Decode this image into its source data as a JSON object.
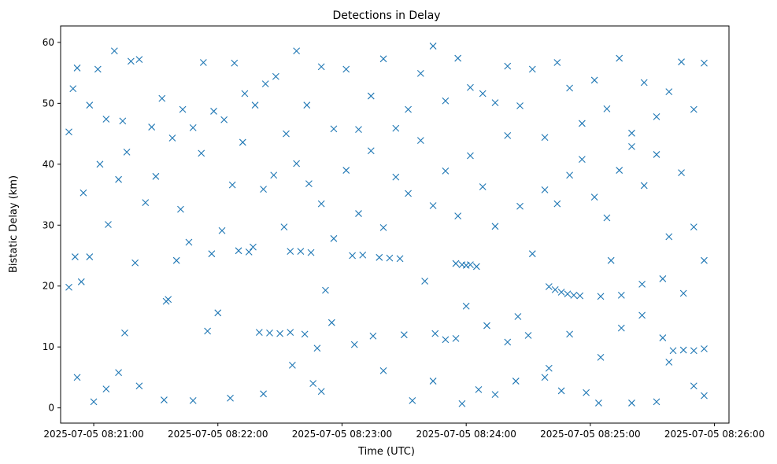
{
  "chart_data": {
    "type": "scatter",
    "title": "Detections in Delay",
    "xlabel": "Time (UTC)",
    "ylabel": "Bistatic Delay (km)",
    "x_axis_type": "datetime",
    "xlim": [
      "2025-07-05 08:20:44",
      "2025-07-05 08:26:07"
    ],
    "ylim": [
      -2.5,
      62.7
    ],
    "x_ticks": [
      "2025-07-05 08:21:00",
      "2025-07-05 08:22:00",
      "2025-07-05 08:23:00",
      "2025-07-05 08:24:00",
      "2025-07-05 08:25:00",
      "2025-07-05 08:26:00"
    ],
    "y_ticks": [
      0,
      10,
      20,
      30,
      40,
      50,
      60
    ],
    "marker": "x",
    "grid": false,
    "legend": "none",
    "series": [
      {
        "color": "#1f77b4",
        "points": [
          [
            "2025-07-05 08:20:48",
            45.3
          ],
          [
            "2025-07-05 08:20:50",
            52.4
          ],
          [
            "2025-07-05 08:20:52",
            55.8
          ],
          [
            "2025-07-05 08:20:55",
            35.3
          ],
          [
            "2025-07-05 08:20:58",
            49.7
          ],
          [
            "2025-07-05 08:21:02",
            55.6
          ],
          [
            "2025-07-05 08:21:06",
            47.4
          ],
          [
            "2025-07-05 08:21:10",
            58.6
          ],
          [
            "2025-07-05 08:21:14",
            47.1
          ],
          [
            "2025-07-05 08:21:18",
            56.9
          ],
          [
            "2025-07-05 08:21:22",
            57.2
          ],
          [
            "2025-07-05 08:21:28",
            46.1
          ],
          [
            "2025-07-05 08:21:33",
            50.8
          ],
          [
            "2025-07-05 08:21:38",
            44.3
          ],
          [
            "2025-07-05 08:21:43",
            49.0
          ],
          [
            "2025-07-05 08:21:48",
            46.0
          ],
          [
            "2025-07-05 08:21:53",
            56.7
          ],
          [
            "2025-07-05 08:21:58",
            48.7
          ],
          [
            "2025-07-05 08:22:03",
            47.3
          ],
          [
            "2025-07-05 08:22:08",
            56.6
          ],
          [
            "2025-07-05 08:22:13",
            51.6
          ],
          [
            "2025-07-05 08:22:18",
            49.7
          ],
          [
            "2025-07-05 08:22:23",
            53.2
          ],
          [
            "2025-07-05 08:22:28",
            54.4
          ],
          [
            "2025-07-05 08:22:33",
            45.0
          ],
          [
            "2025-07-05 08:22:38",
            58.6
          ],
          [
            "2025-07-05 08:22:43",
            49.7
          ],
          [
            "2025-07-05 08:22:50",
            56.0
          ],
          [
            "2025-07-05 08:22:56",
            45.8
          ],
          [
            "2025-07-05 08:23:02",
            55.6
          ],
          [
            "2025-07-05 08:23:08",
            45.7
          ],
          [
            "2025-07-05 08:23:14",
            51.2
          ],
          [
            "2025-07-05 08:23:20",
            57.3
          ],
          [
            "2025-07-05 08:23:26",
            45.9
          ],
          [
            "2025-07-05 08:23:32",
            49.0
          ],
          [
            "2025-07-05 08:23:38",
            54.9
          ],
          [
            "2025-07-05 08:23:44",
            59.4
          ],
          [
            "2025-07-05 08:23:50",
            50.4
          ],
          [
            "2025-07-05 08:23:56",
            57.4
          ],
          [
            "2025-07-05 08:24:02",
            52.6
          ],
          [
            "2025-07-05 08:24:08",
            51.6
          ],
          [
            "2025-07-05 08:24:14",
            50.1
          ],
          [
            "2025-07-05 08:24:20",
            56.1
          ],
          [
            "2025-07-05 08:24:26",
            49.6
          ],
          [
            "2025-07-05 08:24:32",
            55.6
          ],
          [
            "2025-07-05 08:24:38",
            44.4
          ],
          [
            "2025-07-05 08:24:44",
            56.7
          ],
          [
            "2025-07-05 08:24:50",
            52.5
          ],
          [
            "2025-07-05 08:24:56",
            46.7
          ],
          [
            "2025-07-05 08:25:02",
            53.8
          ],
          [
            "2025-07-05 08:25:08",
            49.1
          ],
          [
            "2025-07-05 08:25:14",
            57.4
          ],
          [
            "2025-07-05 08:25:20",
            45.1
          ],
          [
            "2025-07-05 08:25:26",
            53.4
          ],
          [
            "2025-07-05 08:25:32",
            47.8
          ],
          [
            "2025-07-05 08:25:38",
            51.9
          ],
          [
            "2025-07-05 08:25:44",
            56.8
          ],
          [
            "2025-07-05 08:25:50",
            49.0
          ],
          [
            "2025-07-05 08:25:55",
            56.6
          ],
          [
            "2025-07-05 08:20:48",
            19.8
          ],
          [
            "2025-07-05 08:20:51",
            24.8
          ],
          [
            "2025-07-05 08:20:54",
            20.7
          ],
          [
            "2025-07-05 08:20:58",
            24.8
          ],
          [
            "2025-07-05 08:21:03",
            40.0
          ],
          [
            "2025-07-05 08:21:07",
            30.1
          ],
          [
            "2025-07-05 08:21:12",
            37.5
          ],
          [
            "2025-07-05 08:21:16",
            42.0
          ],
          [
            "2025-07-05 08:21:20",
            23.8
          ],
          [
            "2025-07-05 08:21:25",
            33.7
          ],
          [
            "2025-07-05 08:21:30",
            38.0
          ],
          [
            "2025-07-05 08:21:36",
            17.8
          ],
          [
            "2025-07-05 08:21:42",
            32.6
          ],
          [
            "2025-07-05 08:21:46",
            27.2
          ],
          [
            "2025-07-05 08:21:52",
            41.8
          ],
          [
            "2025-07-05 08:21:57",
            25.3
          ],
          [
            "2025-07-05 08:22:02",
            29.1
          ],
          [
            "2025-07-05 08:22:07",
            36.6
          ],
          [
            "2025-07-05 08:22:12",
            43.6
          ],
          [
            "2025-07-05 08:22:17",
            26.4
          ],
          [
            "2025-07-05 08:22:22",
            35.9
          ],
          [
            "2025-07-05 08:22:27",
            38.2
          ],
          [
            "2025-07-05 08:22:32",
            29.7
          ],
          [
            "2025-07-05 08:22:38",
            40.1
          ],
          [
            "2025-07-05 08:22:44",
            36.8
          ],
          [
            "2025-07-05 08:22:50",
            33.5
          ],
          [
            "2025-07-05 08:22:56",
            27.8
          ],
          [
            "2025-07-05 08:23:02",
            39.0
          ],
          [
            "2025-07-05 08:23:08",
            31.9
          ],
          [
            "2025-07-05 08:23:14",
            42.2
          ],
          [
            "2025-07-05 08:23:20",
            29.6
          ],
          [
            "2025-07-05 08:23:26",
            37.9
          ],
          [
            "2025-07-05 08:23:32",
            35.2
          ],
          [
            "2025-07-05 08:23:38",
            43.9
          ],
          [
            "2025-07-05 08:23:44",
            33.2
          ],
          [
            "2025-07-05 08:23:50",
            38.9
          ],
          [
            "2025-07-05 08:23:56",
            31.5
          ],
          [
            "2025-07-05 08:24:02",
            41.4
          ],
          [
            "2025-07-05 08:24:08",
            36.3
          ],
          [
            "2025-07-05 08:24:14",
            29.8
          ],
          [
            "2025-07-05 08:24:20",
            44.7
          ],
          [
            "2025-07-05 08:24:26",
            33.1
          ],
          [
            "2025-07-05 08:24:32",
            25.3
          ],
          [
            "2025-07-05 08:24:38",
            35.8
          ],
          [
            "2025-07-05 08:24:44",
            33.5
          ],
          [
            "2025-07-05 08:24:50",
            38.2
          ],
          [
            "2025-07-05 08:24:56",
            40.8
          ],
          [
            "2025-07-05 08:25:02",
            34.6
          ],
          [
            "2025-07-05 08:25:08",
            31.2
          ],
          [
            "2025-07-05 08:25:14",
            39.0
          ],
          [
            "2025-07-05 08:25:20",
            42.9
          ],
          [
            "2025-07-05 08:25:26",
            36.5
          ],
          [
            "2025-07-05 08:25:32",
            41.6
          ],
          [
            "2025-07-05 08:25:38",
            28.1
          ],
          [
            "2025-07-05 08:25:44",
            38.6
          ],
          [
            "2025-07-05 08:25:50",
            29.7
          ],
          [
            "2025-07-05 08:25:55",
            24.2
          ],
          [
            "2025-07-05 08:22:10",
            25.8
          ],
          [
            "2025-07-05 08:22:15",
            25.6
          ],
          [
            "2025-07-05 08:22:35",
            25.7
          ],
          [
            "2025-07-05 08:22:40",
            25.7
          ],
          [
            "2025-07-05 08:22:45",
            25.5
          ],
          [
            "2025-07-05 08:23:05",
            25.0
          ],
          [
            "2025-07-05 08:23:10",
            25.1
          ],
          [
            "2025-07-05 08:23:18",
            24.7
          ],
          [
            "2025-07-05 08:23:23",
            24.6
          ],
          [
            "2025-07-05 08:23:28",
            24.5
          ],
          [
            "2025-07-05 08:23:55",
            23.7
          ],
          [
            "2025-07-05 08:23:58",
            23.5
          ],
          [
            "2025-07-05 08:24:00",
            23.4
          ],
          [
            "2025-07-05 08:24:02",
            23.5
          ],
          [
            "2025-07-05 08:24:05",
            23.2
          ],
          [
            "2025-07-05 08:24:40",
            19.9
          ],
          [
            "2025-07-05 08:24:43",
            19.4
          ],
          [
            "2025-07-05 08:24:46",
            19.0
          ],
          [
            "2025-07-05 08:24:49",
            18.7
          ],
          [
            "2025-07-05 08:24:52",
            18.5
          ],
          [
            "2025-07-05 08:24:55",
            18.4
          ],
          [
            "2025-07-05 08:25:05",
            18.3
          ],
          [
            "2025-07-05 08:25:15",
            18.5
          ],
          [
            "2025-07-05 08:25:25",
            20.3
          ],
          [
            "2025-07-05 08:25:35",
            21.2
          ],
          [
            "2025-07-05 08:21:15",
            12.3
          ],
          [
            "2025-07-05 08:21:35",
            17.5
          ],
          [
            "2025-07-05 08:21:55",
            12.6
          ],
          [
            "2025-07-05 08:22:20",
            12.4
          ],
          [
            "2025-07-05 08:22:25",
            12.3
          ],
          [
            "2025-07-05 08:22:30",
            12.2
          ],
          [
            "2025-07-05 08:22:35",
            12.4
          ],
          [
            "2025-07-05 08:22:42",
            12.1
          ],
          [
            "2025-07-05 08:22:48",
            9.8
          ],
          [
            "2025-07-05 08:22:55",
            14.0
          ],
          [
            "2025-07-05 08:23:15",
            11.8
          ],
          [
            "2025-07-05 08:23:30",
            12.0
          ],
          [
            "2025-07-05 08:23:45",
            12.2
          ],
          [
            "2025-07-05 08:23:50",
            11.2
          ],
          [
            "2025-07-05 08:23:55",
            11.4
          ],
          [
            "2025-07-05 08:24:10",
            13.5
          ],
          [
            "2025-07-05 08:24:20",
            10.8
          ],
          [
            "2025-07-05 08:24:30",
            11.9
          ],
          [
            "2025-07-05 08:24:40",
            6.5
          ],
          [
            "2025-07-05 08:24:50",
            12.1
          ],
          [
            "2025-07-05 08:25:05",
            8.3
          ],
          [
            "2025-07-05 08:25:15",
            13.1
          ],
          [
            "2025-07-05 08:25:25",
            15.2
          ],
          [
            "2025-07-05 08:25:35",
            11.5
          ],
          [
            "2025-07-05 08:25:40",
            9.4
          ],
          [
            "2025-07-05 08:25:45",
            9.5
          ],
          [
            "2025-07-05 08:25:50",
            9.4
          ],
          [
            "2025-07-05 08:25:55",
            9.7
          ],
          [
            "2025-07-05 08:20:52",
            5.0
          ],
          [
            "2025-07-05 08:21:00",
            1.0
          ],
          [
            "2025-07-05 08:21:06",
            3.1
          ],
          [
            "2025-07-05 08:21:12",
            5.8
          ],
          [
            "2025-07-05 08:21:22",
            3.6
          ],
          [
            "2025-07-05 08:21:34",
            1.3
          ],
          [
            "2025-07-05 08:21:48",
            1.2
          ],
          [
            "2025-07-05 08:22:06",
            1.6
          ],
          [
            "2025-07-05 08:22:22",
            2.3
          ],
          [
            "2025-07-05 08:22:36",
            7.0
          ],
          [
            "2025-07-05 08:22:46",
            4.0
          ],
          [
            "2025-07-05 08:22:50",
            2.7
          ],
          [
            "2025-07-05 08:23:06",
            10.4
          ],
          [
            "2025-07-05 08:23:20",
            6.1
          ],
          [
            "2025-07-05 08:23:34",
            1.2
          ],
          [
            "2025-07-05 08:23:44",
            4.4
          ],
          [
            "2025-07-05 08:23:58",
            0.7
          ],
          [
            "2025-07-05 08:24:06",
            3.0
          ],
          [
            "2025-07-05 08:24:14",
            2.2
          ],
          [
            "2025-07-05 08:24:24",
            4.4
          ],
          [
            "2025-07-05 08:24:38",
            5.0
          ],
          [
            "2025-07-05 08:24:46",
            2.8
          ],
          [
            "2025-07-05 08:24:58",
            2.5
          ],
          [
            "2025-07-05 08:25:04",
            0.8
          ],
          [
            "2025-07-05 08:25:20",
            0.8
          ],
          [
            "2025-07-05 08:25:32",
            1.0
          ],
          [
            "2025-07-05 08:25:38",
            7.5
          ],
          [
            "2025-07-05 08:25:50",
            3.6
          ],
          [
            "2025-07-05 08:25:55",
            2.0
          ],
          [
            "2025-07-05 08:21:40",
            24.2
          ],
          [
            "2025-07-05 08:22:00",
            15.6
          ],
          [
            "2025-07-05 08:22:52",
            19.3
          ],
          [
            "2025-07-05 08:23:40",
            20.8
          ],
          [
            "2025-07-05 08:24:00",
            16.7
          ],
          [
            "2025-07-05 08:24:25",
            15.0
          ],
          [
            "2025-07-05 08:25:10",
            24.2
          ],
          [
            "2025-07-05 08:25:45",
            18.8
          ]
        ]
      }
    ]
  }
}
